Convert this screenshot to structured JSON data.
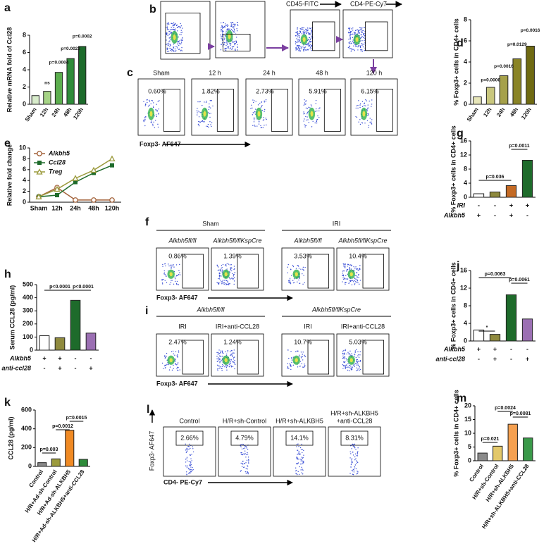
{
  "figure_labels": [
    "a",
    "b",
    "c",
    "d",
    "e",
    "f",
    "g",
    "h",
    "i",
    "j",
    "k",
    "l",
    "m"
  ],
  "chart_data": [
    {
      "type": "bar",
      "ylabel": "Relative mRNA fold of Ccl28",
      "categories": [
        "Sham",
        "12h",
        "24h",
        "48h",
        "120h"
      ],
      "values": [
        1.0,
        1.5,
        3.7,
        5.3,
        6.7
      ],
      "colors": [
        "#d8eccb",
        "#a6d486",
        "#5cae4e",
        "#2f8c3a",
        "#1c6b2b"
      ],
      "ylim": [
        0,
        8
      ],
      "yticks": [
        0,
        2,
        4,
        6,
        8
      ],
      "annotations": [
        "ns",
        "p=0.0004",
        "p=0.0022",
        "p=0.0002"
      ]
    },
    {
      "type": "bar",
      "ylabel": "% Foxp3+ cells in CD4+ cells",
      "categories": [
        "Sham",
        "12h",
        "24h",
        "48h",
        "120h"
      ],
      "values": [
        0.7,
        1.6,
        2.7,
        4.3,
        5.5
      ],
      "colors": [
        "#e7e6b9",
        "#c9c77e",
        "#a6a14a",
        "#8a8426",
        "#6f6a12"
      ],
      "ylim": [
        0,
        8
      ],
      "yticks": [
        0,
        2,
        4,
        6,
        8
      ],
      "annotations": [
        "p=0.0006",
        "p=0.0016",
        "p=0.0129",
        "p=0.0016"
      ]
    },
    {
      "type": "line",
      "ylabel": "Relative fold change",
      "categories": [
        "Sham",
        "12h",
        "24h",
        "48h",
        "120h"
      ],
      "ylim": [
        0,
        10
      ],
      "yticks": [
        0,
        2,
        4,
        6,
        8,
        10
      ],
      "series": [
        {
          "name": "Alkbh5",
          "color": "#a3623a",
          "marker": "circle",
          "values": [
            1.0,
            2.7,
            0.4,
            0.4,
            0.4
          ]
        },
        {
          "name": "Ccl28",
          "color": "#1e6b2b",
          "marker": "square",
          "values": [
            1.0,
            1.3,
            3.7,
            5.4,
            6.8
          ]
        },
        {
          "name": "Treg",
          "color": "#9b9a3c",
          "marker": "triangle",
          "values": [
            1.0,
            2.4,
            4.4,
            5.9,
            8.0
          ]
        }
      ]
    },
    {
      "type": "bar",
      "ylabel": "% Foxp3+ cells in CD4+ cells",
      "values": [
        1.0,
        1.5,
        3.3,
        10.5
      ],
      "colors": [
        "#ffffff",
        "#8f8a3e",
        "#c46a24",
        "#1e6b2b"
      ],
      "ylim": [
        0,
        16
      ],
      "yticks": [
        0,
        4,
        8,
        12,
        16
      ],
      "annotations": [
        "p=0.036",
        "p=0.0011"
      ],
      "sign_rows": [
        {
          "label": "IRI",
          "signs": [
            "-",
            "-",
            "+",
            "+"
          ]
        },
        {
          "label": "Alkbh5",
          "signs": [
            "+",
            "-",
            "+",
            "-"
          ]
        }
      ]
    },
    {
      "type": "bar",
      "ylabel": "Serum CCL28 (pg/ml)",
      "values": [
        110,
        95,
        380,
        130
      ],
      "colors": [
        "#ffffff",
        "#8f8a3e",
        "#1e6b2b",
        "#9b6fb3"
      ],
      "ylim": [
        0,
        500
      ],
      "yticks": [
        0,
        100,
        200,
        300,
        400,
        500
      ],
      "annotations": [
        "p<0.0001",
        "p<0.0001"
      ],
      "sign_rows": [
        {
          "label": "Alkbh5",
          "signs": [
            "+",
            "+",
            "-",
            "-"
          ]
        },
        {
          "label": "anti-ccl28",
          "signs": [
            "-",
            "+",
            "-",
            "+"
          ]
        }
      ]
    },
    {
      "type": "bar",
      "ylabel": "% Foxp3+ cells in CD4+ cells",
      "values": [
        2.5,
        1.5,
        10.5,
        5.0
      ],
      "colors": [
        "#ffffff",
        "#8f8a3e",
        "#1e6b2b",
        "#9b6fb3"
      ],
      "ylim": [
        0,
        16
      ],
      "yticks": [
        0,
        4,
        8,
        12,
        16
      ],
      "annotations": [
        "*",
        "p=0.0063",
        "p=0.0061"
      ],
      "sign_rows": [
        {
          "label": "Alkbh5",
          "signs": [
            "+",
            "+",
            "-",
            "-"
          ]
        },
        {
          "label": "anti-ccl28",
          "signs": [
            "-",
            "+",
            "-",
            "+"
          ]
        }
      ]
    },
    {
      "type": "bar",
      "ylabel": "CCL28 (pg/ml)",
      "categories": [
        "Control",
        "H/R+Ad-sh-Control",
        "H/R+Ad-sh-ALKBH5",
        "H/R+Ad-sh-ALKBH5+anti-CCL28"
      ],
      "values": [
        40,
        80,
        385,
        75
      ],
      "colors": [
        "#8a8a8a",
        "#9b9a3c",
        "#f08a24",
        "#2e8b3a"
      ],
      "ylim": [
        0,
        600
      ],
      "yticks": [
        0,
        200,
        400,
        600
      ],
      "annotations": [
        "p=0.003",
        "p=0.0012",
        "p=0.0015"
      ]
    },
    {
      "type": "bar",
      "ylabel": "% Foxp3+ cells in CD4+ cells",
      "categories": [
        "Control",
        "H/R+sh-Control",
        "H/R+sh-ALKBH5",
        "H/R+sh-ALKBH5+anti-CCL28"
      ],
      "values": [
        2.8,
        5.3,
        13.3,
        8.3
      ],
      "colors": [
        "#8a8a8a",
        "#e3c86a",
        "#f5a050",
        "#3a9a4a"
      ],
      "ylim": [
        0,
        20
      ],
      "yticks": [
        0,
        5,
        10,
        15,
        20
      ],
      "annotations": [
        "p=0.021",
        "p=0.0024",
        "p=0.0081"
      ]
    }
  ],
  "flow_panels": {
    "b": {
      "axis_labels": [
        "CD45-FITC",
        "CD4-PE-Cy7"
      ]
    },
    "c": {
      "titles": [
        "Sham",
        "12 h",
        "24 h",
        "48 h",
        "120 h"
      ],
      "percents": [
        "0.60%",
        "1.82%",
        "2.73%",
        "5.91%",
        "6.15%"
      ],
      "x_axis": "Foxp3- AF647"
    },
    "f": {
      "groups": [
        "Sham",
        "IRI"
      ],
      "subtitles": [
        "Alkbh5fl/fl",
        "Alkbh5fl/flKspCre",
        "Alkbh5fl/fl",
        "Alkbh5fl/flKspCre"
      ],
      "percents": [
        "0.86%",
        "1.39%",
        "3.53%",
        "10.4%"
      ],
      "x_axis": "Foxp3- AF647"
    },
    "i": {
      "groups": [
        "Alkbh5fl/fl",
        "Alkbh5fl/flKspCre"
      ],
      "subtitles": [
        "IRI",
        "IRI+anti-CCL28",
        "IRI",
        "IRI+anti-CCL28"
      ],
      "percents": [
        "2.47%",
        "1.24%",
        "10.7%",
        "5.03%"
      ],
      "x_axis": "Foxp3- AF647"
    },
    "l": {
      "titles": [
        [
          "Control"
        ],
        [
          "H/R+sh-Control"
        ],
        [
          "H/R+sh-ALKBH5"
        ],
        [
          "H/R+sh-ALKBH5",
          "+anti-CCL28"
        ]
      ],
      "percents": [
        "2.66%",
        "4.79%",
        "14.1%",
        "8.31%"
      ],
      "y_axis": "Foxp3- AF647",
      "x_axis": "CD4- PE-Cy7"
    }
  }
}
